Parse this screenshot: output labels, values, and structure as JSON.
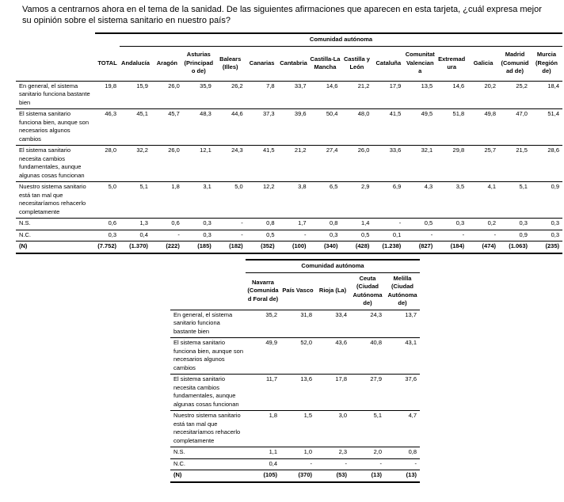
{
  "title": "Vamos a centrarnos ahora en el tema de la sanidad. De las siguientes afirmaciones que aparecen en esta tarjeta, ¿cuál expresa mejor su opinión sobre el sistema sanitario en nuestro país?",
  "table1": {
    "group_header": "Comunidad autónoma",
    "columns": [
      "TOTAL",
      "Andalucía",
      "Aragón",
      "Asturias (Principado de)",
      "Balears (Illes)",
      "Canarias",
      "Cantabria",
      "Castilla-La Mancha",
      "Castilla y León",
      "Cataluña",
      "Comunitat Valenciana",
      "Extremadura",
      "Galicia",
      "Madrid (Comunidad de)",
      "Murcia (Región de)"
    ],
    "rows": [
      {
        "label": "En general, el sistema sanitario funciona bastante bien",
        "values": [
          "19,8",
          "15,9",
          "26,0",
          "35,9",
          "26,2",
          "7,8",
          "33,7",
          "14,6",
          "21,2",
          "17,9",
          "13,5",
          "14,6",
          "20,2",
          "25,2",
          "18,4"
        ]
      },
      {
        "label": "El sistema sanitario funciona bien, aunque son necesarios algunos cambios",
        "values": [
          "46,3",
          "45,1",
          "45,7",
          "48,3",
          "44,6",
          "37,3",
          "39,6",
          "50,4",
          "48,0",
          "41,5",
          "49,5",
          "51,8",
          "49,8",
          "47,0",
          "51,4"
        ]
      },
      {
        "label": "El sistema sanitario necesita cambios fundamentales, aunque algunas cosas funcionan",
        "values": [
          "28,0",
          "32,2",
          "26,0",
          "12,1",
          "24,3",
          "41,5",
          "21,2",
          "27,4",
          "26,0",
          "33,6",
          "32,1",
          "29,8",
          "25,7",
          "21,5",
          "28,6"
        ]
      },
      {
        "label": "Nuestro sistema sanitario está tan mal que necesitaríamos rehacerlo completamente",
        "values": [
          "5,0",
          "5,1",
          "1,8",
          "3,1",
          "5,0",
          "12,2",
          "3,8",
          "6,5",
          "2,9",
          "6,9",
          "4,3",
          "3,5",
          "4,1",
          "5,1",
          "0,9"
        ]
      },
      {
        "label": "N.S.",
        "values": [
          "0,6",
          "1,3",
          "0,6",
          "0,3",
          "-",
          "0,8",
          "1,7",
          "0,8",
          "1,4",
          "-",
          "0,5",
          "0,3",
          "0,2",
          "0,3",
          "0,3"
        ]
      },
      {
        "label": "N.C.",
        "values": [
          "0,3",
          "0,4",
          "-",
          "0,3",
          "-",
          "0,5",
          "-",
          "0,3",
          "0,5",
          "0,1",
          "-",
          "-",
          "-",
          "0,9",
          "0,3"
        ]
      },
      {
        "label": "(N)",
        "bold": true,
        "values": [
          "(7.752)",
          "(1.370)",
          "(222)",
          "(185)",
          "(182)",
          "(352)",
          "(100)",
          "(340)",
          "(428)",
          "(1.238)",
          "(827)",
          "(184)",
          "(474)",
          "(1.063)",
          "(235)"
        ]
      }
    ]
  },
  "table2": {
    "group_header": "Comunidad autónoma",
    "columns": [
      "Navarra (Comunidad Foral de)",
      "País Vasco",
      "Rioja (La)",
      "Ceuta (Ciudad Autónoma de)",
      "Melilla (Ciudad Autónoma de)"
    ],
    "rows": [
      {
        "label": "En general, el sistema sanitario funciona bastante bien",
        "values": [
          "35,2",
          "31,8",
          "33,4",
          "24,3",
          "13,7"
        ]
      },
      {
        "label": "El sistema sanitario funciona bien, aunque son necesarios algunos cambios",
        "values": [
          "49,9",
          "52,0",
          "43,6",
          "40,8",
          "43,1"
        ]
      },
      {
        "label": "El sistema sanitario necesita cambios fundamentales, aunque algunas cosas funcionan",
        "values": [
          "11,7",
          "13,6",
          "17,8",
          "27,9",
          "37,6"
        ]
      },
      {
        "label": "Nuestro sistema sanitario está tan mal que necesitaríamos rehacerlo completamente",
        "values": [
          "1,8",
          "1,5",
          "3,0",
          "5,1",
          "4,7"
        ]
      },
      {
        "label": "N.S.",
        "values": [
          "1,1",
          "1,0",
          "2,3",
          "2,0",
          "0,8"
        ]
      },
      {
        "label": "N.C.",
        "values": [
          "0,4",
          "-",
          "-",
          "-",
          "-"
        ]
      },
      {
        "label": "(N)",
        "bold": true,
        "values": [
          "(105)",
          "(370)",
          "(53)",
          "(13)",
          "(13)"
        ]
      }
    ]
  }
}
